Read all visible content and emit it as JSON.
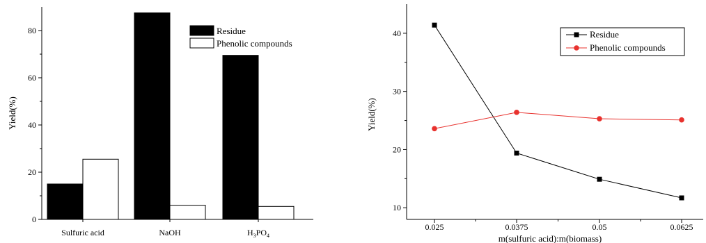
{
  "chart_data": [
    {
      "type": "bar",
      "ylabel": "Yield(%)",
      "ylim": [
        0,
        90
      ],
      "yticks": [
        0,
        20,
        40,
        60,
        80
      ],
      "categories": [
        "Sulfuric acid",
        "NaOH",
        "H3PO4"
      ],
      "series": [
        {
          "name": "Residue",
          "color": "#000000",
          "values": [
            15,
            87.5,
            69.5
          ]
        },
        {
          "name": "Phenolic compounds",
          "color": "#ffffff",
          "values": [
            25.5,
            6,
            5.5
          ]
        }
      ],
      "legend": "top-right"
    },
    {
      "type": "line",
      "xlabel": "m(sulfuric acid):m(biomass)",
      "ylabel": "Yield(%)",
      "ylim": [
        8,
        45
      ],
      "yticks": [
        10,
        20,
        30,
        40
      ],
      "x": [
        "0.025",
        "0.0375",
        "0.05",
        "0.0625"
      ],
      "series": [
        {
          "name": "Residue",
          "color": "#000000",
          "marker": "square",
          "values": [
            41.4,
            19.4,
            14.9,
            11.7
          ]
        },
        {
          "name": "Phenolic compounds",
          "color": "#e8322e",
          "marker": "circle",
          "values": [
            23.6,
            26.4,
            25.3,
            25.1
          ]
        }
      ],
      "legend": "top-right"
    }
  ]
}
